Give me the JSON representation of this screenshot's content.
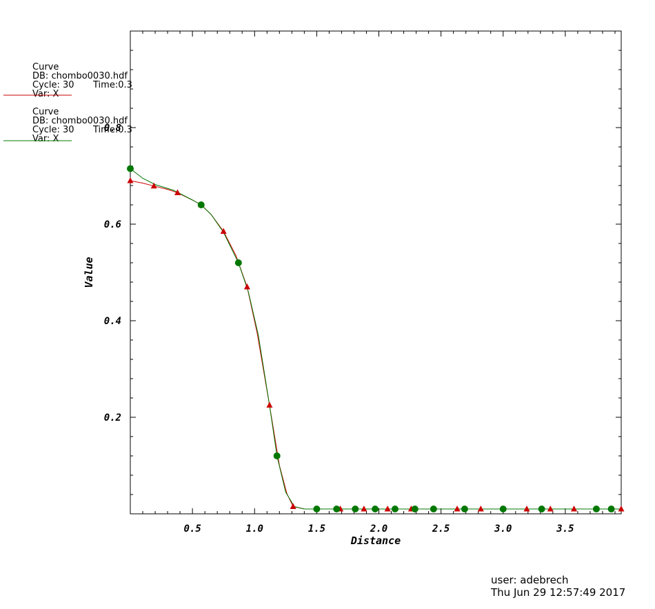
{
  "legend": [
    {
      "label": "Curve",
      "db": "DB: chombo0030.hdf",
      "cycle": "Cycle: 30",
      "time": "Time:0.3",
      "var": "Var: X",
      "color": "#cc0000"
    },
    {
      "label": "Curve",
      "db": "DB: chombo0030.hdf",
      "cycle": "Cycle: 30",
      "time": "Time:0.3",
      "var": "Var: X",
      "color": "#007700"
    }
  ],
  "user_info": {
    "user": "user: adebrech",
    "date": "Thu Jun 29 12:57:49 2017"
  },
  "chart_data": {
    "type": "line",
    "xlabel": "Distance",
    "ylabel": "Value",
    "xlim": [
      0,
      3.95
    ],
    "ylim": [
      0,
      1.0
    ],
    "x_ticks": [
      0.5,
      1.0,
      1.5,
      2.0,
      2.5,
      3.0,
      3.5
    ],
    "x_tick_labels": [
      "0.5",
      "1.0",
      "1.5",
      "2.0",
      "2.5",
      "3.0",
      "3.5"
    ],
    "y_ticks": [
      0.2,
      0.4,
      0.6,
      0.8
    ],
    "y_tick_labels": [
      "0.2",
      "0.4",
      "0.6",
      "0.8"
    ],
    "series": [
      {
        "color": "#cc0000",
        "marker": "triangle",
        "x": [
          0,
          0.1,
          0.19,
          0.3,
          0.38,
          0.5,
          0.57,
          0.65,
          0.75,
          0.85,
          0.94,
          1.02,
          1.12,
          1.2,
          1.26,
          1.31,
          1.4,
          1.5,
          1.69,
          1.88,
          2.07,
          2.26,
          2.45,
          2.63,
          2.82,
          3.01,
          3.19,
          3.38,
          3.57,
          3.76,
          3.95
        ],
        "y": [
          0.69,
          0.685,
          0.679,
          0.672,
          0.665,
          0.65,
          0.64,
          0.62,
          0.585,
          0.535,
          0.47,
          0.375,
          0.225,
          0.1,
          0.042,
          0.015,
          0.01,
          0.01,
          0.01,
          0.01,
          0.01,
          0.01,
          0.01,
          0.01,
          0.01,
          0.01,
          0.01,
          0.01,
          0.01,
          0.01,
          0.01
        ],
        "markers_x": [
          0,
          0.19,
          0.38,
          0.57,
          0.75,
          0.94,
          1.12,
          1.31,
          1.69,
          1.88,
          2.07,
          2.26,
          2.63,
          2.82,
          3.19,
          3.38,
          3.57,
          3.95
        ],
        "markers_y": [
          0.69,
          0.679,
          0.665,
          0.64,
          0.585,
          0.47,
          0.225,
          0.015,
          0.01,
          0.01,
          0.01,
          0.01,
          0.01,
          0.01,
          0.01,
          0.01,
          0.01,
          0.01
        ]
      },
      {
        "color": "#007700",
        "marker": "circle",
        "x": [
          0,
          0.1,
          0.2,
          0.35,
          0.5,
          0.57,
          0.65,
          0.75,
          0.87,
          0.95,
          1.03,
          1.12,
          1.18,
          1.25,
          1.32,
          1.4,
          1.5,
          1.66,
          1.81,
          1.97,
          2.13,
          2.29,
          2.44,
          2.69,
          3.0,
          3.31,
          3.75,
          3.87,
          3.95
        ],
        "y": [
          0.715,
          0.695,
          0.682,
          0.67,
          0.65,
          0.64,
          0.62,
          0.583,
          0.52,
          0.46,
          0.37,
          0.225,
          0.12,
          0.045,
          0.015,
          0.01,
          0.01,
          0.01,
          0.01,
          0.01,
          0.01,
          0.01,
          0.01,
          0.01,
          0.01,
          0.01,
          0.01,
          0.01,
          0.01
        ],
        "markers_x": [
          0,
          0.57,
          0.87,
          1.18,
          1.5,
          1.66,
          1.81,
          1.97,
          2.13,
          2.29,
          2.44,
          2.69,
          3.0,
          3.31,
          3.75,
          3.87
        ],
        "markers_y": [
          0.715,
          0.64,
          0.52,
          0.12,
          0.01,
          0.01,
          0.01,
          0.01,
          0.01,
          0.01,
          0.01,
          0.01,
          0.01,
          0.01,
          0.01,
          0.01
        ]
      }
    ]
  }
}
